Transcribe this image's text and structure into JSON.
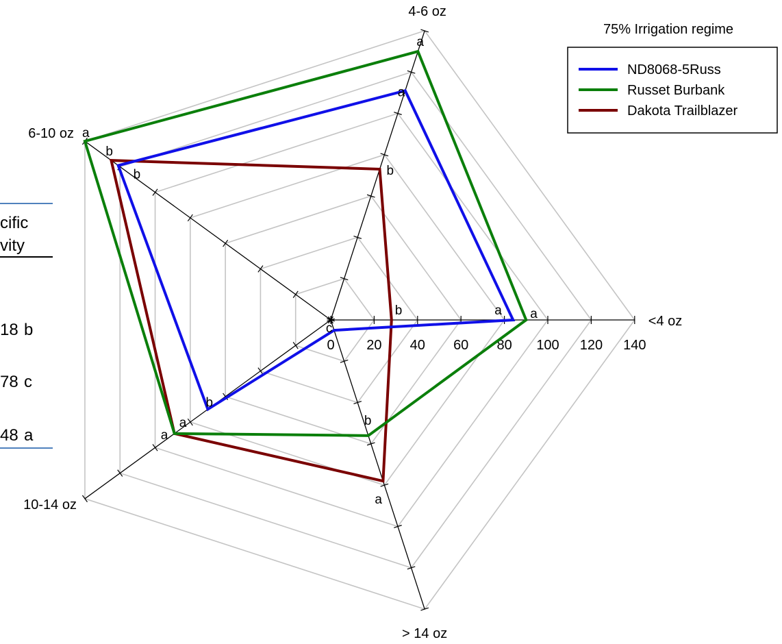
{
  "chart_data": {
    "type": "radar",
    "legend_title": "75% Irrigation regime",
    "axes": [
      "<4 oz",
      "4-6 oz",
      "6-10 oz",
      "10-14 oz",
      "> 14 oz"
    ],
    "scale": {
      "min": 0,
      "max": 140,
      "step": 20
    },
    "ticks": [
      "0",
      "20",
      "40",
      "60",
      "80",
      "100",
      "120",
      "140"
    ],
    "series": [
      {
        "name": "ND8068-5Russ",
        "color": "#1010e8",
        "values": [
          84,
          111,
          121,
          70,
          5
        ],
        "sig": [
          "a",
          "a",
          "b",
          "b",
          "c"
        ]
      },
      {
        "name": "Russet Burbank",
        "color": "#0b7f0b",
        "values": [
          90,
          130,
          140,
          89,
          56
        ],
        "sig": [
          "a",
          "a",
          "a",
          "a",
          "b"
        ]
      },
      {
        "name": "Dakota Trailblazer",
        "color": "#7a0000",
        "values": [
          28,
          73,
          125,
          89,
          78
        ],
        "sig": [
          "b",
          "b",
          "b",
          "a",
          "a"
        ]
      }
    ],
    "legend_position": "top-right",
    "grid": true
  },
  "left_panel": {
    "header": [
      "cific",
      "vity"
    ],
    "rows": [
      {
        "value": "18",
        "letter": "b"
      },
      {
        "value": "78",
        "letter": "c"
      },
      {
        "value": "48",
        "letter": "a"
      }
    ]
  }
}
